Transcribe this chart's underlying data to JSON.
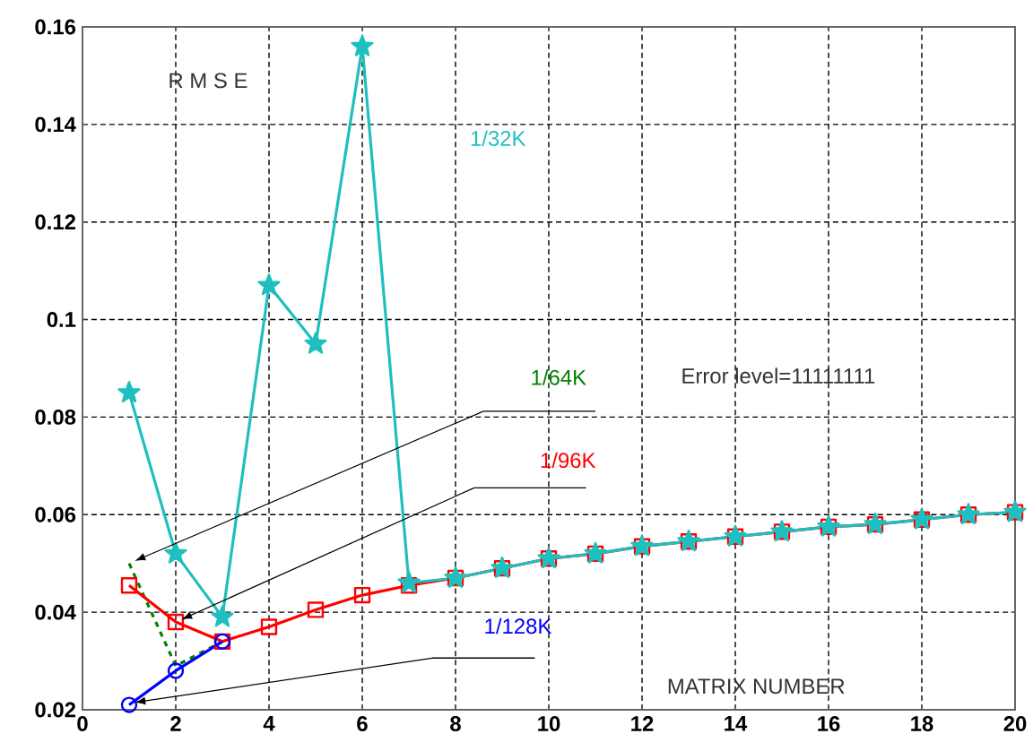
{
  "chart_data": {
    "type": "line",
    "ylabel": "R M S E",
    "xlabel": "MATRIX NUMBER",
    "annotations": [
      "Error level=11111111"
    ],
    "x": [
      1,
      2,
      3,
      4,
      5,
      6,
      7,
      8,
      9,
      10,
      11,
      12,
      13,
      14,
      15,
      16,
      17,
      18,
      19,
      20
    ],
    "xlim": [
      0,
      20
    ],
    "xticks": [
      0,
      2,
      4,
      6,
      8,
      10,
      12,
      14,
      16,
      18,
      20
    ],
    "ylim": [
      0.02,
      0.16
    ],
    "yticks": [
      0.02,
      0.04,
      0.06,
      0.08,
      0.1,
      0.12,
      0.14,
      0.16
    ],
    "grid": true,
    "series": [
      {
        "name": "1/64K",
        "color": "#008000",
        "marker": "none",
        "line_style": "dashed",
        "values": [
          0.05,
          0.029,
          0.034,
          null,
          null,
          null,
          null,
          null,
          null,
          null,
          null,
          null,
          null,
          null,
          null,
          null,
          null,
          null,
          null,
          null
        ]
      },
      {
        "name": "1/96K",
        "color": "#ff0000",
        "marker": "square",
        "line_style": "solid",
        "values": [
          0.0455,
          0.038,
          0.034,
          0.037,
          0.0405,
          0.0435,
          0.0455,
          0.047,
          0.049,
          0.051,
          0.052,
          0.0535,
          0.0545,
          0.0555,
          0.0565,
          0.0575,
          0.058,
          0.059,
          0.06,
          0.0605
        ]
      },
      {
        "name": "1/32K",
        "color": "#1fbfbf",
        "marker": "star",
        "line_style": "solid",
        "values": [
          0.085,
          0.052,
          0.039,
          0.107,
          0.095,
          0.156,
          0.046,
          0.047,
          0.049,
          0.051,
          0.052,
          0.0535,
          0.0545,
          0.0555,
          0.0565,
          0.0575,
          0.058,
          0.059,
          0.06,
          0.0605
        ]
      },
      {
        "name": "1/128K",
        "color": "#0000ff",
        "marker": "circle",
        "line_style": "solid",
        "values": [
          0.021,
          0.028,
          0.034,
          null,
          null,
          null,
          null,
          null,
          null,
          null,
          null,
          null,
          null,
          null,
          null,
          null,
          null,
          null,
          null,
          null
        ]
      }
    ]
  }
}
